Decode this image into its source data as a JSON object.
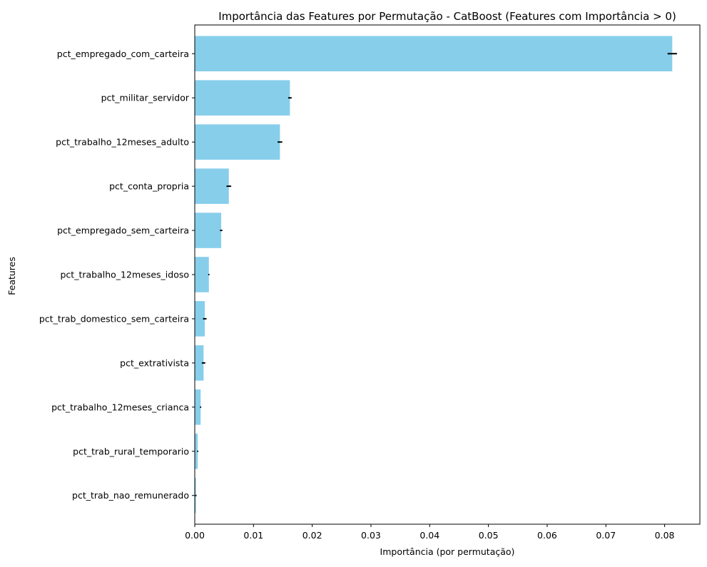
{
  "chart_data": {
    "type": "bar",
    "orientation": "horizontal",
    "title": "Importância das Features por Permutação - CatBoost (Features com Importância > 0)",
    "xlabel": "Importância (por permutação)",
    "ylabel": "Features",
    "xlim": [
      0,
      0.086
    ],
    "xticks": [
      "0.00",
      "0.01",
      "0.02",
      "0.03",
      "0.04",
      "0.05",
      "0.06",
      "0.07",
      "0.08"
    ],
    "categories": [
      "pct_empregado_com_carteira",
      "pct_militar_servidor",
      "pct_trabalho_12meses_adulto",
      "pct_conta_propria",
      "pct_empregado_sem_carteira",
      "pct_trabalho_12meses_idoso",
      "pct_trab_domestico_sem_carteira",
      "pct_extrativista",
      "pct_trabalho_12meses_crianca",
      "pct_trab_rural_temporario",
      "pct_trab_nao_remunerado"
    ],
    "values": [
      0.0813,
      0.0162,
      0.0145,
      0.0058,
      0.0045,
      0.0024,
      0.0017,
      0.0015,
      0.001,
      0.0005,
      0.0002
    ],
    "errors": [
      0.0008,
      0.0003,
      0.0004,
      0.0004,
      0.0002,
      0.0001,
      0.0003,
      0.0003,
      0.0001,
      0.0001,
      0.0001
    ],
    "bar_color": "#87CEEB",
    "error_color": "#000000",
    "grid": false,
    "legend": "none"
  }
}
